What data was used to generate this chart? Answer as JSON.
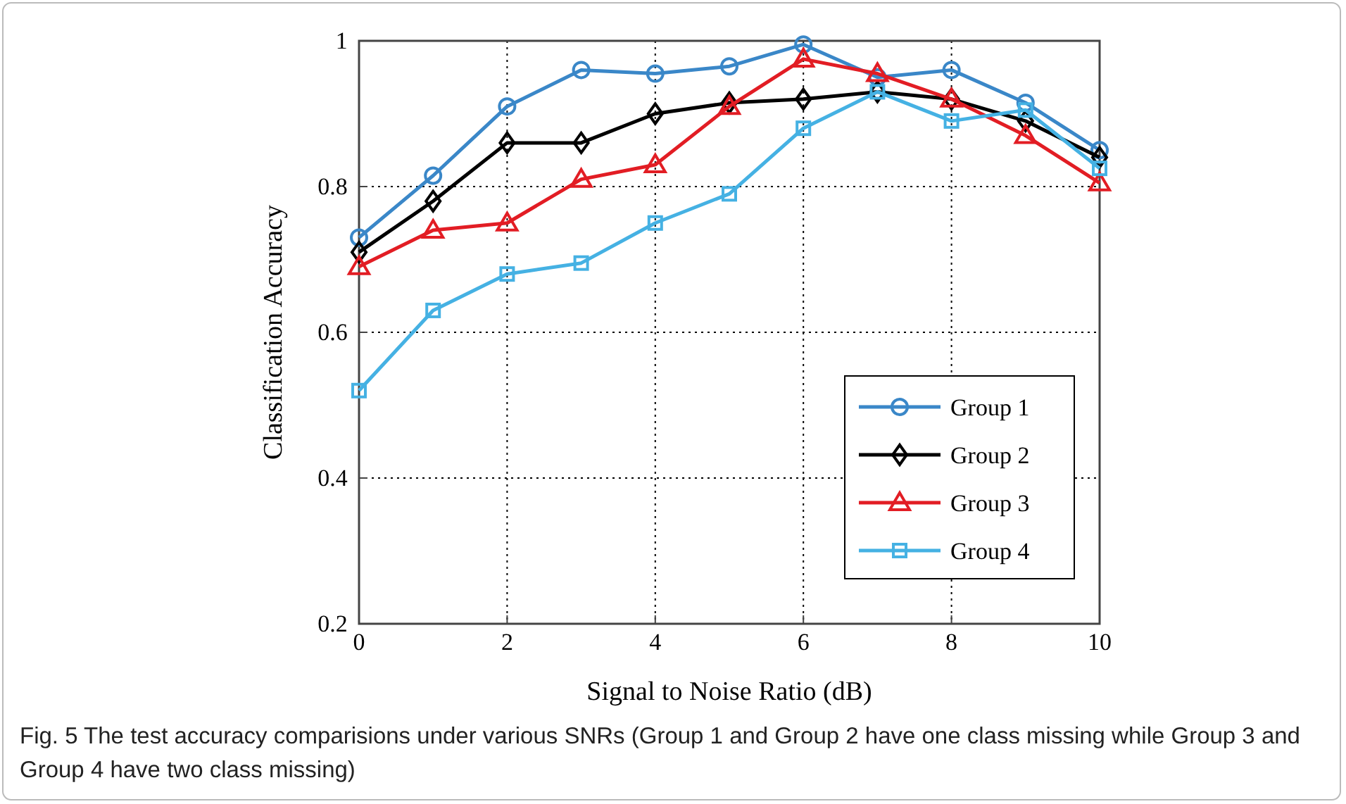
{
  "chart_data": {
    "type": "line",
    "xlabel": "Signal to Noise Ratio (dB)",
    "ylabel": "Classification Accuracy",
    "x": [
      0,
      1,
      2,
      3,
      4,
      5,
      6,
      7,
      8,
      9,
      10
    ],
    "series": [
      {
        "name": "Group 1",
        "color": "#3a87c8",
        "marker": "circle",
        "values": [
          0.73,
          0.815,
          0.91,
          0.96,
          0.955,
          0.965,
          0.995,
          0.95,
          0.96,
          0.915,
          0.85
        ]
      },
      {
        "name": "Group 2",
        "color": "#000000",
        "marker": "diamond",
        "values": [
          0.71,
          0.78,
          0.86,
          0.86,
          0.9,
          0.915,
          0.92,
          0.93,
          0.92,
          0.89,
          0.84
        ]
      },
      {
        "name": "Group 3",
        "color": "#e21d24",
        "marker": "triangle",
        "values": [
          0.69,
          0.74,
          0.75,
          0.81,
          0.83,
          0.91,
          0.975,
          0.955,
          0.92,
          0.87,
          0.805
        ]
      },
      {
        "name": "Group 4",
        "color": "#45b1e3",
        "marker": "square",
        "values": [
          0.52,
          0.63,
          0.68,
          0.695,
          0.75,
          0.79,
          0.88,
          0.93,
          0.89,
          0.905,
          0.825
        ]
      }
    ],
    "xlim": [
      0,
      10
    ],
    "xticks": [
      0,
      2,
      4,
      6,
      8,
      10
    ],
    "ylim": [
      0.2,
      1
    ],
    "yticks": [
      {
        "value": 0.2,
        "label": "0.2"
      },
      {
        "value": 0.4,
        "label": "0.4"
      },
      {
        "value": 0.6,
        "label": "0.6"
      },
      {
        "value": 0.8,
        "label": "0.8"
      },
      {
        "value": 1,
        "label": "1"
      }
    ],
    "grid": true,
    "legend": "bottom right",
    "line_style": "solid",
    "annotations": [
      "Fig. 5  The test accuracy comparisions under various SNRs (Group 1 and Group 2 have one class missing while Group 3 and Group 4 have two class missing)"
    ]
  }
}
